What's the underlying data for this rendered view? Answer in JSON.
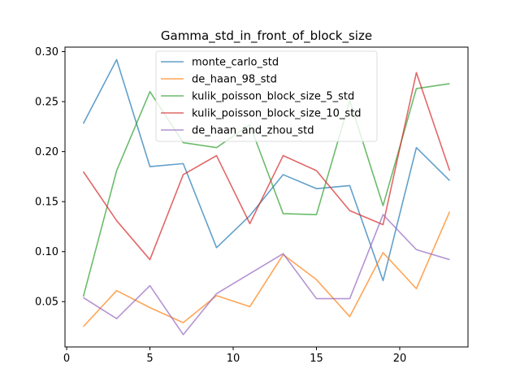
{
  "chart_data": {
    "type": "line",
    "title": "Gamma_std_in_front_of_block_size",
    "xlabel": "",
    "ylabel": "",
    "xlim": [
      -0.1,
      24.1
    ],
    "ylim": [
      0.0047,
      0.3045
    ],
    "xticks": [
      0,
      5,
      10,
      15,
      20
    ],
    "xtick_labels": [
      "0",
      "5",
      "10",
      "15",
      "20"
    ],
    "yticks": [
      0.05,
      0.1,
      0.15,
      0.2,
      0.25,
      0.3
    ],
    "ytick_labels": [
      "0.05",
      "0.10",
      "0.15",
      "0.20",
      "0.25",
      "0.30"
    ],
    "grid": false,
    "legend_position": "upper-center",
    "x": [
      1,
      3,
      5,
      7,
      9,
      11,
      13,
      15,
      17,
      19,
      21,
      23
    ],
    "series": [
      {
        "name": "monte_carlo_std",
        "color": "#1f77b4",
        "values": [
          0.228,
          0.292,
          0.185,
          0.188,
          0.104,
          0.136,
          0.177,
          0.163,
          0.166,
          0.071,
          0.204,
          0.171
        ]
      },
      {
        "name": "de_haan_98_std",
        "color": "#ff7f0e",
        "values": [
          0.025,
          0.061,
          0.044,
          0.029,
          0.056,
          0.045,
          0.097,
          0.072,
          0.035,
          0.099,
          0.063,
          0.14
        ]
      },
      {
        "name": "kulik_poisson_block_size_5_std",
        "color": "#2ca02c",
        "values": [
          0.055,
          0.181,
          0.26,
          0.209,
          0.204,
          0.227,
          0.138,
          0.137,
          0.251,
          0.146,
          0.263,
          0.268
        ]
      },
      {
        "name": "kulik_poisson_block_size_10_std",
        "color": "#d62728",
        "values": [
          0.18,
          0.131,
          0.092,
          0.177,
          0.196,
          0.128,
          0.196,
          0.181,
          0.141,
          0.127,
          0.279,
          0.181
        ]
      },
      {
        "name": "de_haan_and_zhou_std",
        "color": "#9467bd",
        "values": [
          0.054,
          0.033,
          0.066,
          0.017,
          0.058,
          0.078,
          0.098,
          0.053,
          0.053,
          0.137,
          0.102,
          0.092
        ]
      }
    ]
  }
}
